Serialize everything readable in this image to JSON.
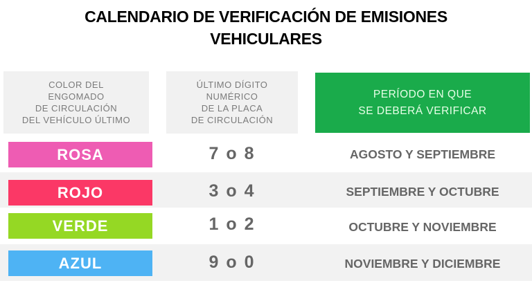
{
  "title_lines": [
    "CALENDARIO DE VERIFICACIÓN DE EMISIONES",
    "VEHICULARES"
  ],
  "headers": {
    "color": [
      "COLOR DEL",
      "ENGOMADO",
      "DE CIRCULACIÓN",
      "DEL VEHÍCULO ÚLTIMO"
    ],
    "digit": [
      "ÚLTIMO DÍGITO",
      "NUMÉRICO",
      "DE LA PLACA",
      "DE CIRCULACIÓN"
    ],
    "period": [
      "PERÍODO EN QUE",
      "SE DEBERÁ VERIFICAR"
    ]
  },
  "colors": {
    "header_green": "#1aab4b"
  },
  "rows": [
    {
      "color": "ROSA",
      "hex": "#ee5cb3",
      "digits": "7 o 8",
      "period": "AGOSTO Y SEPTIEMBRE"
    },
    {
      "color": "ROJO",
      "hex": "#fb3866",
      "digits": "3 o 4",
      "period": "SEPTIEMBRE Y OCTUBRE"
    },
    {
      "color": "VERDE",
      "hex": "#95d824",
      "digits": "1 o 2",
      "period": "OCTUBRE Y NOVIEMBRE"
    },
    {
      "color": "AZUL",
      "hex": "#4eb3f4",
      "digits": "9 o 0",
      "period": "NOVIEMBRE Y DICIEMBRE"
    }
  ]
}
